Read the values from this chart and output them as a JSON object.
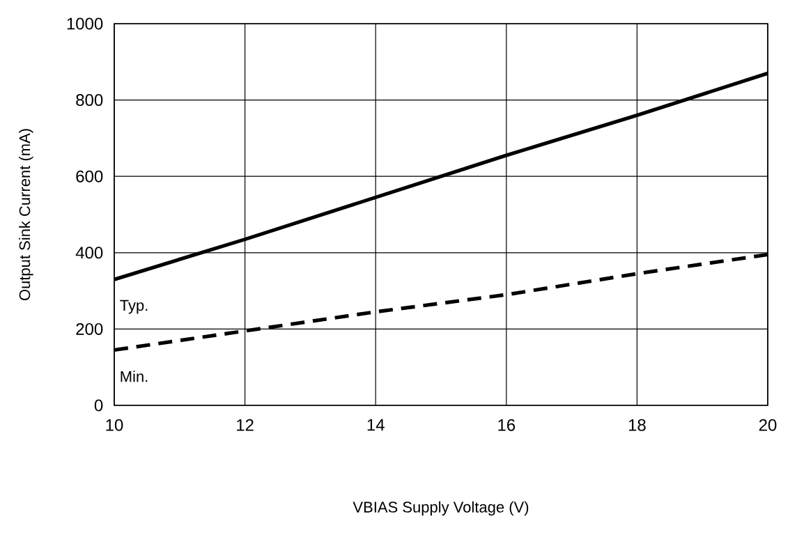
{
  "chart_data": {
    "type": "line",
    "xlabel": "VBIAS Supply Voltage (V)",
    "ylabel": "Output Sink Current (mA)",
    "xlim": [
      10,
      20
    ],
    "xticks": [
      10,
      12,
      14,
      16,
      18,
      20
    ],
    "ylim": [
      0,
      1000
    ],
    "yticks": [
      0,
      200,
      400,
      600,
      800,
      1000
    ],
    "grid": true,
    "series": [
      {
        "name": "Typ.",
        "color": "#000000",
        "line_style": "solid",
        "x": [
          10,
          12,
          14,
          16,
          18,
          20
        ],
        "values": [
          330,
          435,
          545,
          655,
          760,
          870
        ]
      },
      {
        "name": "Min.",
        "color": "#000000",
        "line_style": "dashed",
        "x": [
          10,
          12,
          14,
          16,
          18,
          20
        ],
        "values": [
          145,
          195,
          245,
          290,
          345,
          395
        ]
      }
    ]
  }
}
